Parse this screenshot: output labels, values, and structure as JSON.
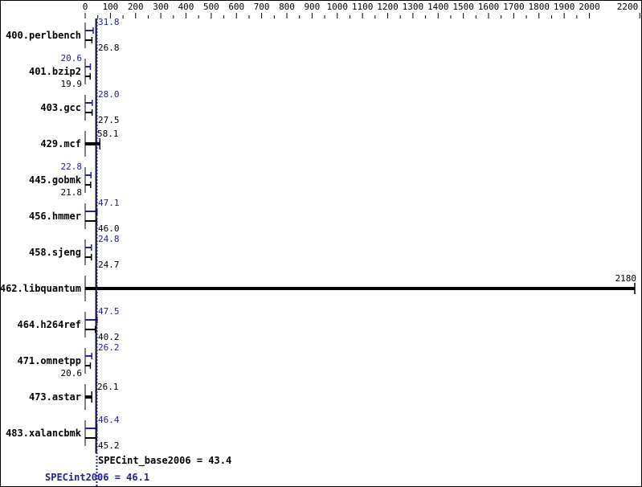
{
  "chart_data": {
    "type": "bar",
    "orientation": "horizontal",
    "xlim": [
      0,
      2200
    ],
    "x_ticks": [
      0,
      100,
      200,
      300,
      400,
      500,
      600,
      700,
      800,
      900,
      1000,
      1100,
      1200,
      1300,
      1400,
      1500,
      1600,
      1700,
      1800,
      1900,
      2000,
      2200
    ],
    "categories": [
      "400.perlbench",
      "401.bzip2",
      "403.gcc",
      "429.mcf",
      "445.gobmk",
      "456.hmmer",
      "458.sjeng",
      "462.libquantum",
      "464.h264ref",
      "471.omnetpp",
      "473.astar",
      "483.xalancbmk"
    ],
    "series": [
      {
        "name": "SPECint_base2006",
        "color": "#000000",
        "values": [
          26.8,
          19.9,
          27.5,
          58.1,
          21.8,
          46.0,
          24.7,
          2180,
          40.2,
          20.6,
          26.1,
          45.2
        ]
      },
      {
        "name": "SPECint2006",
        "color": "#2020a0",
        "values": [
          31.8,
          20.6,
          28.0,
          null,
          22.8,
          47.1,
          24.8,
          null,
          47.5,
          26.2,
          null,
          46.4
        ]
      }
    ],
    "value_labels": {
      "base": [
        "26.8",
        "19.9",
        "27.5",
        "58.1",
        "21.8",
        "46.0",
        "24.7",
        "2180",
        "40.2",
        "20.6",
        "26.1",
        "45.2"
      ],
      "peak": [
        "31.8",
        "20.6",
        "28.0",
        null,
        "22.8",
        "47.1",
        "24.8",
        null,
        "47.5",
        "26.2",
        null,
        "46.4"
      ]
    },
    "summary": {
      "base_label": "SPECint_base2006 = 43.4",
      "base_value": 43.4,
      "peak_label": "SPECint2006 = 46.1",
      "peak_value": 46.1
    },
    "grid": false
  }
}
